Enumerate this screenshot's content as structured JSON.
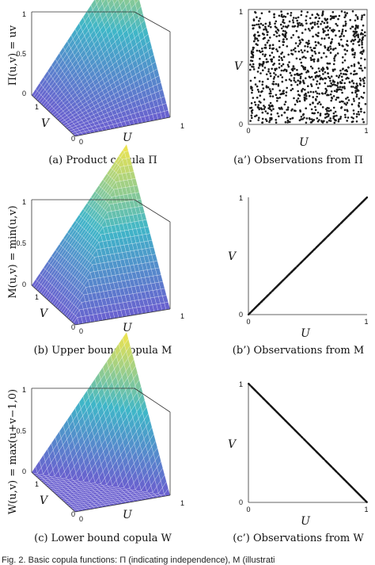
{
  "chart_data": [
    {
      "type": "surface",
      "id": "product",
      "caption": "(a) Product copula Π",
      "zlabel": "Π(u,v) = uv",
      "xlabel": "U",
      "ylabel": "V",
      "z_ticks": [
        "0",
        "0.5",
        "1"
      ],
      "u_ticks": [
        "0",
        "1"
      ],
      "v_ticks": [
        "0",
        "1"
      ],
      "function": "product"
    },
    {
      "type": "scatter",
      "id": "product-obs",
      "caption": "(a’) Observations from Π",
      "xlabel": "U",
      "ylabel": "V",
      "xlim": [
        0,
        1
      ],
      "ylim": [
        0,
        1
      ],
      "x_ticks": [
        "0",
        "1"
      ],
      "y_ticks": [
        "0",
        "1"
      ],
      "pattern": "uniform",
      "n_points": 1000
    },
    {
      "type": "surface",
      "id": "upper",
      "caption": "(b) Upper bound copula M",
      "zlabel": "M(u,v) = min(u,v)",
      "xlabel": "U",
      "ylabel": "V",
      "z_ticks": [
        "0",
        "0.5",
        "1"
      ],
      "u_ticks": [
        "0",
        "1"
      ],
      "v_ticks": [
        "0",
        "1"
      ],
      "function": "min"
    },
    {
      "type": "scatter",
      "id": "upper-obs",
      "caption": "(b’) Observations from M",
      "xlabel": "U",
      "ylabel": "V",
      "xlim": [
        0,
        1
      ],
      "ylim": [
        0,
        1
      ],
      "x_ticks": [
        "0",
        "1"
      ],
      "y_ticks": [
        "0",
        "1"
      ],
      "pattern": "diagonal",
      "n_points": 1000
    },
    {
      "type": "surface",
      "id": "lower",
      "caption": "(c) Lower bound copula W",
      "zlabel": "W(u,v) = max(u+v−1,0)",
      "xlabel": "U",
      "ylabel": "V",
      "z_ticks": [
        "0",
        "0.5",
        "1"
      ],
      "u_ticks": [
        "0",
        "1"
      ],
      "v_ticks": [
        "0",
        "1"
      ],
      "function": "max"
    },
    {
      "type": "scatter",
      "id": "lower-obs",
      "caption": "(c’) Observations from W",
      "xlabel": "U",
      "ylabel": "V",
      "xlim": [
        0,
        1
      ],
      "ylim": [
        0,
        1
      ],
      "x_ticks": [
        "0",
        "1"
      ],
      "y_ticks": [
        "0",
        "1"
      ],
      "pattern": "anti-diagonal",
      "n_points": 1000
    }
  ],
  "footer": {
    "text": "Fig. 2. Basic copula functions: Π (indicating independence), M (illustrati"
  },
  "colors": {
    "surface_low": "#6a5fcf",
    "surface_mid": "#3fb6c8",
    "surface_high": "#f6e64a",
    "scatter_point": "#1a1a1a"
  }
}
